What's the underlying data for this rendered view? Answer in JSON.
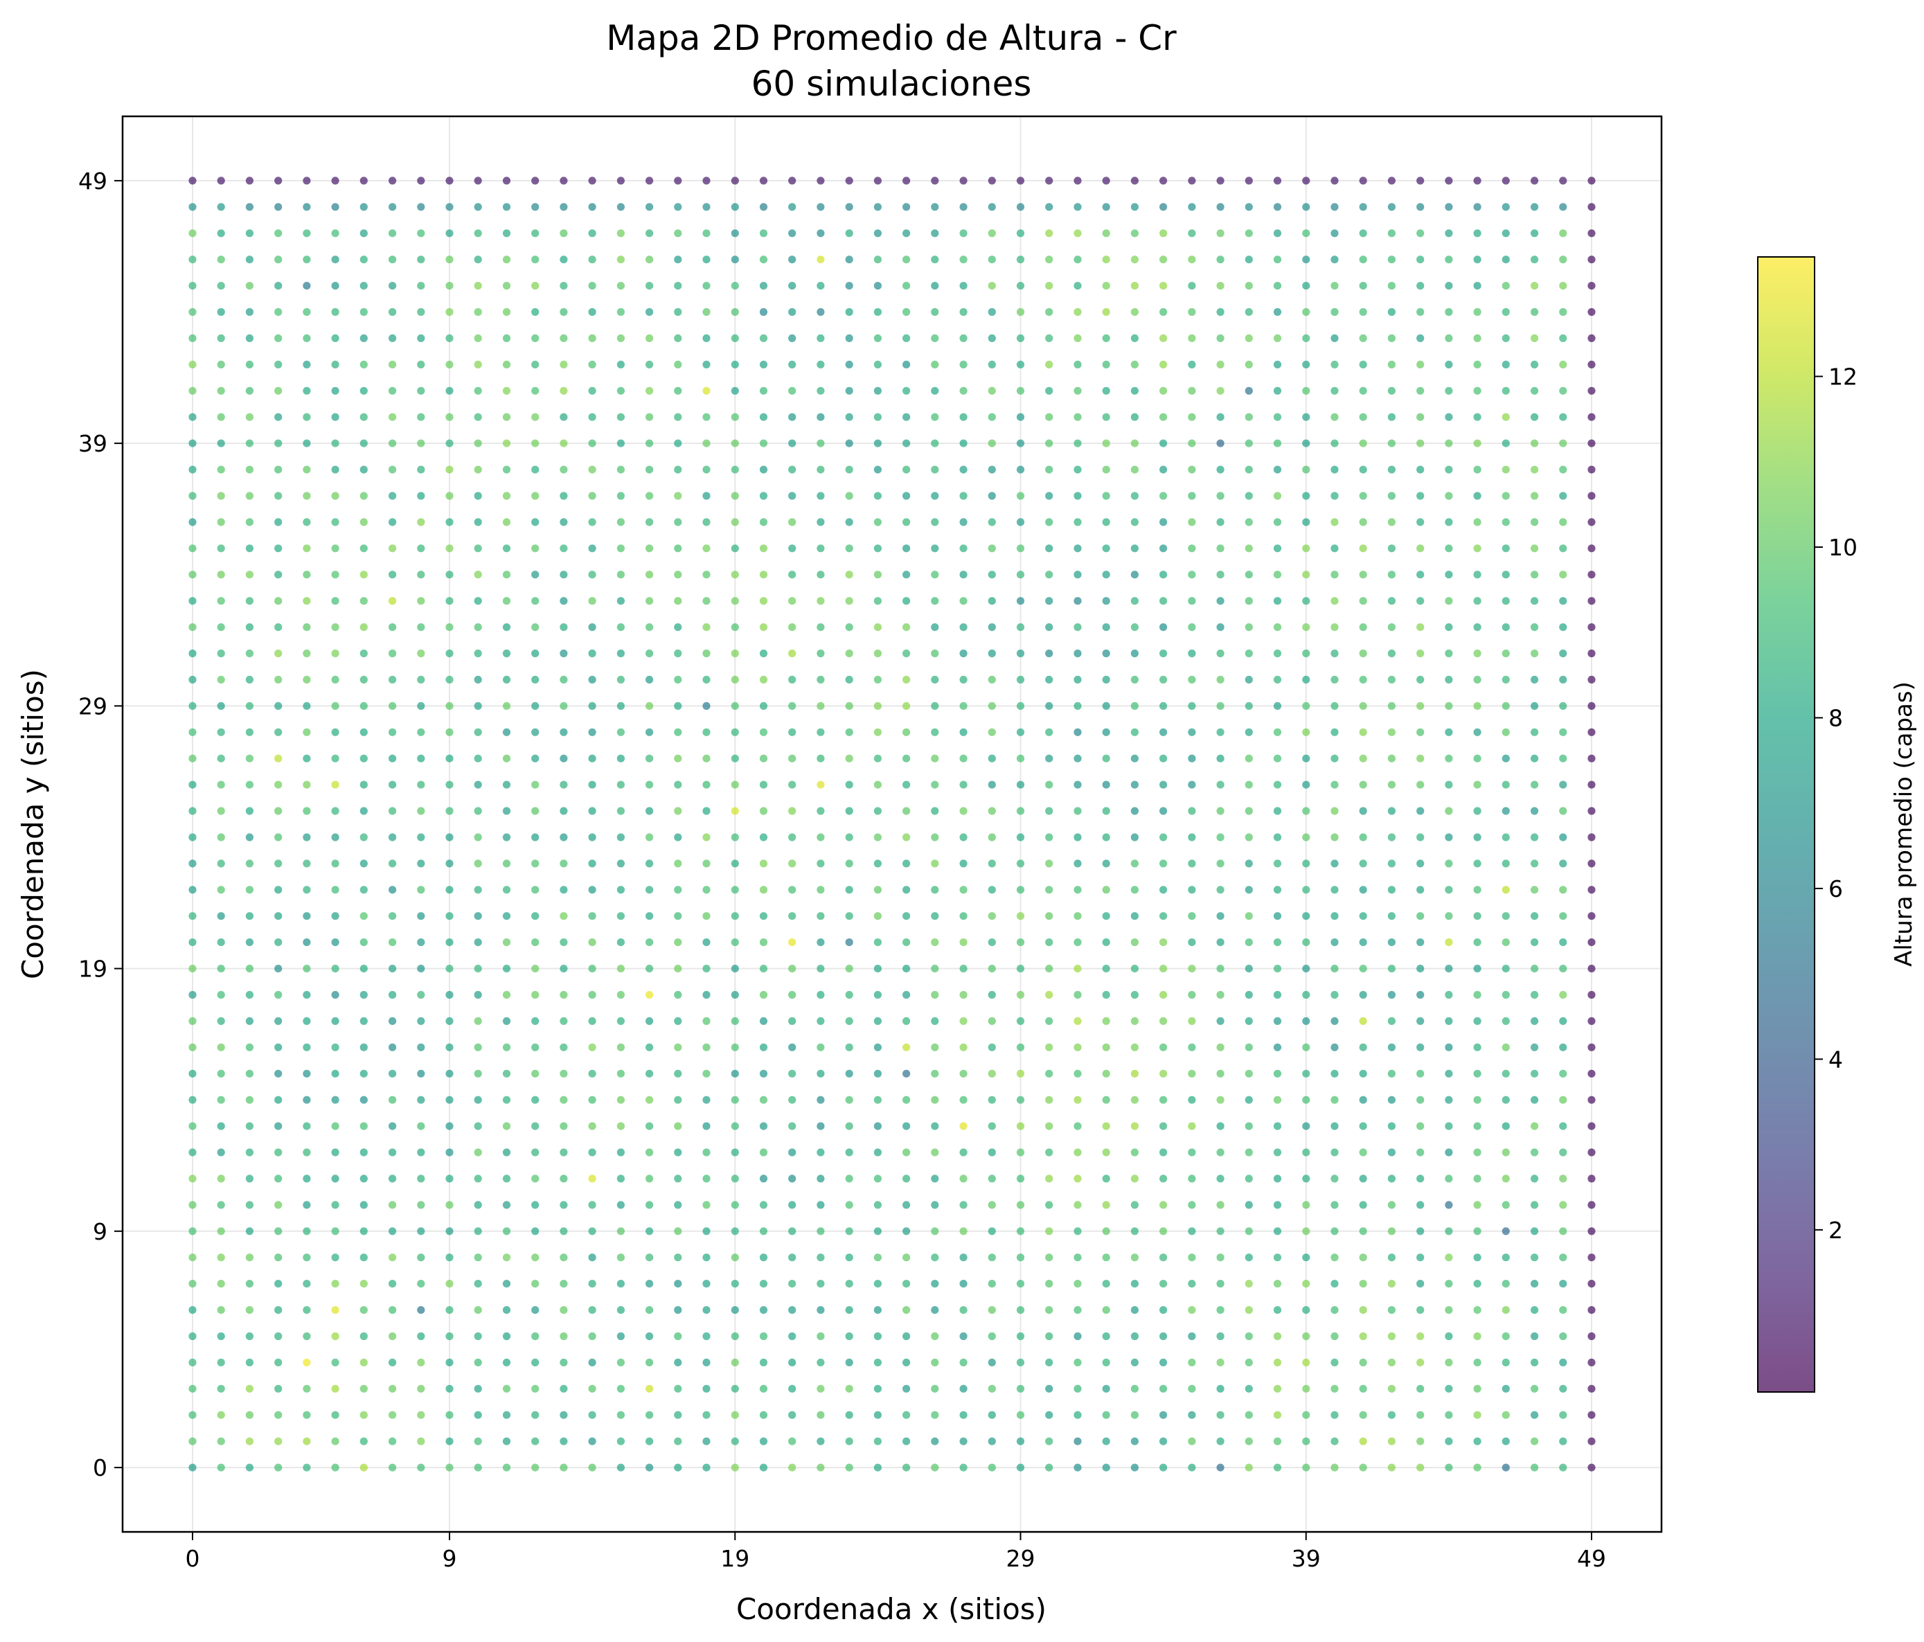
{
  "chart_data": {
    "type": "scatter",
    "title": "Mapa 2D Promedio de Altura - Cr",
    "subtitle": "60 simulaciones",
    "xlabel": "Coordenada x (sitios)",
    "ylabel": "Coordenada y (sitios)",
    "xlim": [
      -2.45,
      51.45
    ],
    "ylim": [
      -2.45,
      51.45
    ],
    "x_ticks": [
      0,
      9,
      19,
      29,
      39,
      49
    ],
    "y_ticks": [
      0,
      9,
      19,
      29,
      39,
      49
    ],
    "grid": true,
    "grid_size": 50,
    "colormap": "viridis",
    "marker_alpha": 0.7,
    "colorbar": {
      "label": "Altura promedio (capas)",
      "min": 0.1,
      "max": 13.4,
      "ticks": [
        2,
        4,
        6,
        8,
        10,
        12
      ]
    },
    "height_field": {
      "description_of_values": "Altura promedio per site (x 0-49, y 0-49)",
      "edge_value_x49": 0.6,
      "edge_value_y49": 1.0,
      "edge_value_y48": 6.5,
      "interior_mean": 8.9,
      "hotspots": [
        {
          "x": 4,
          "y": 4,
          "value": 13.1
        },
        {
          "x": 5,
          "y": 6,
          "value": 12.8
        },
        {
          "x": 16,
          "y": 3,
          "value": 12.4
        },
        {
          "x": 14,
          "y": 11,
          "value": 12.6
        },
        {
          "x": 16,
          "y": 18,
          "value": 13.0
        },
        {
          "x": 21,
          "y": 20,
          "value": 12.9
        },
        {
          "x": 22,
          "y": 26,
          "value": 12.7
        },
        {
          "x": 19,
          "y": 25,
          "value": 12.5
        },
        {
          "x": 18,
          "y": 41,
          "value": 12.6
        },
        {
          "x": 22,
          "y": 46,
          "value": 12.5
        },
        {
          "x": 27,
          "y": 13,
          "value": 12.8
        },
        {
          "x": 25,
          "y": 16,
          "value": 12.2
        },
        {
          "x": 41,
          "y": 17,
          "value": 12.0
        },
        {
          "x": 44,
          "y": 20,
          "value": 12.1
        },
        {
          "x": 46,
          "y": 22,
          "value": 12.0
        },
        {
          "x": 7,
          "y": 33,
          "value": 12.0
        },
        {
          "x": 3,
          "y": 27,
          "value": 12.0
        },
        {
          "x": 5,
          "y": 26,
          "value": 12.3
        }
      ],
      "coldspots": [
        {
          "x": 25,
          "y": 15,
          "value": 5.0
        },
        {
          "x": 36,
          "y": 39,
          "value": 4.6
        },
        {
          "x": 46,
          "y": 9,
          "value": 4.8
        },
        {
          "x": 44,
          "y": 10,
          "value": 5.0
        },
        {
          "x": 37,
          "y": 41,
          "value": 5.2
        },
        {
          "x": 36,
          "y": 0,
          "value": 5.0
        },
        {
          "x": 46,
          "y": 0,
          "value": 5.0
        },
        {
          "x": 18,
          "y": 29,
          "value": 5.5
        },
        {
          "x": 23,
          "y": 20,
          "value": 5.5
        },
        {
          "x": 8,
          "y": 6,
          "value": 5.4
        },
        {
          "x": 4,
          "y": 45,
          "value": 5.6
        },
        {
          "x": 38,
          "y": 49,
          "value": 1.0
        }
      ]
    }
  }
}
